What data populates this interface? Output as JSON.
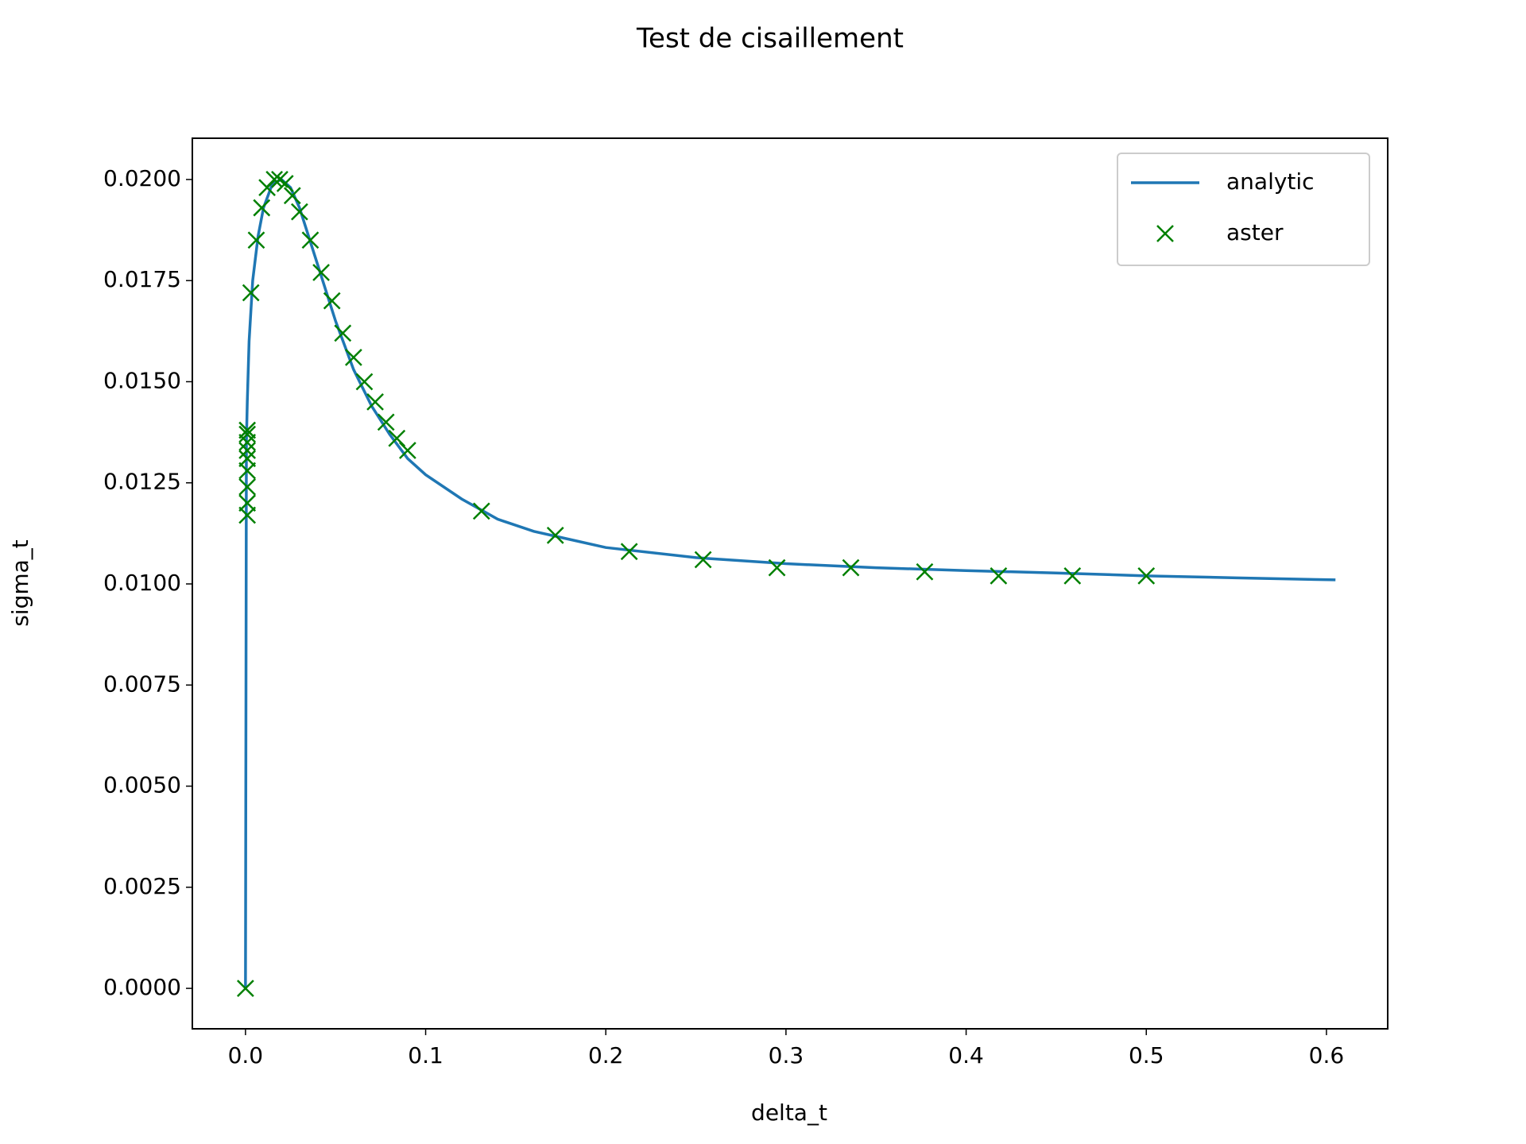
{
  "chart_data": {
    "type": "line",
    "title": "Test de cisaillement",
    "xlabel": "delta_t",
    "ylabel": "sigma_t",
    "xlim": [
      -0.0295,
      0.634
    ],
    "ylim": [
      -0.001,
      0.02102
    ],
    "xticks": [
      {
        "value": 0.0,
        "label": "0.0"
      },
      0.1,
      0.2,
      0.3,
      0.4,
      0.5,
      0.6
    ],
    "yticks": [
      {
        "value": 0.0,
        "label": "0.0000"
      },
      {
        "value": 0.0025,
        "label": "0.0025"
      },
      {
        "value": 0.005,
        "label": "0.0050"
      },
      {
        "value": 0.0075,
        "label": "0.0075"
      },
      {
        "value": 0.01,
        "label": "0.0100"
      },
      {
        "value": 0.0125,
        "label": "0.0125"
      },
      {
        "value": 0.015,
        "label": "0.0150"
      },
      {
        "value": 0.0175,
        "label": "0.0175"
      },
      {
        "value": 0.02,
        "label": "0.0200"
      }
    ],
    "legend_position": "upper right",
    "series": [
      {
        "name": "analytic",
        "color": "#1f77b4",
        "style": "line",
        "x": [
          0,
          0.0005,
          0.001,
          0.002,
          0.004,
          0.007,
          0.01,
          0.015,
          0.02,
          0.025,
          0.03,
          0.035,
          0.04,
          0.05,
          0.06,
          0.07,
          0.08,
          0.09,
          0.1,
          0.12,
          0.14,
          0.16,
          0.18,
          0.2,
          0.25,
          0.3,
          0.35,
          0.4,
          0.45,
          0.5,
          0.55,
          0.605
        ],
        "values": [
          0,
          0.0135,
          0.0145,
          0.016,
          0.0175,
          0.0186,
          0.0193,
          0.0199,
          0.02,
          0.0198,
          0.0193,
          0.0186,
          0.0179,
          0.0165,
          0.0153,
          0.0144,
          0.0137,
          0.0131,
          0.0127,
          0.0121,
          0.0116,
          0.0113,
          0.0111,
          0.0109,
          0.01065,
          0.0105,
          0.0104,
          0.01033,
          0.01027,
          0.0102,
          0.01015,
          0.0101
        ]
      },
      {
        "name": "aster",
        "color": "#008000",
        "style": "x",
        "x": [
          0,
          0.001,
          0.001,
          0.001,
          0.001,
          0.001,
          0.001,
          0.001,
          0.001,
          0.001,
          0.003,
          0.006,
          0.009,
          0.012,
          0.016,
          0.019,
          0.022,
          0.026,
          0.03,
          0.036,
          0.042,
          0.048,
          0.054,
          0.06,
          0.066,
          0.072,
          0.078,
          0.084,
          0.09,
          0.131,
          0.172,
          0.213,
          0.254,
          0.295,
          0.336,
          0.377,
          0.418,
          0.459,
          0.5
        ],
        "values": [
          0,
          0.0117,
          0.012,
          0.0124,
          0.0128,
          0.0131,
          0.0133,
          0.0135,
          0.0137,
          0.0138,
          0.0172,
          0.0185,
          0.0193,
          0.0198,
          0.02,
          0.02,
          0.0199,
          0.0196,
          0.0192,
          0.0185,
          0.0177,
          0.017,
          0.0162,
          0.0156,
          0.015,
          0.0145,
          0.014,
          0.0136,
          0.0133,
          0.0118,
          0.0112,
          0.0108,
          0.0106,
          0.0104,
          0.0104,
          0.0103,
          0.0102,
          0.0102,
          0.0102
        ]
      }
    ]
  }
}
